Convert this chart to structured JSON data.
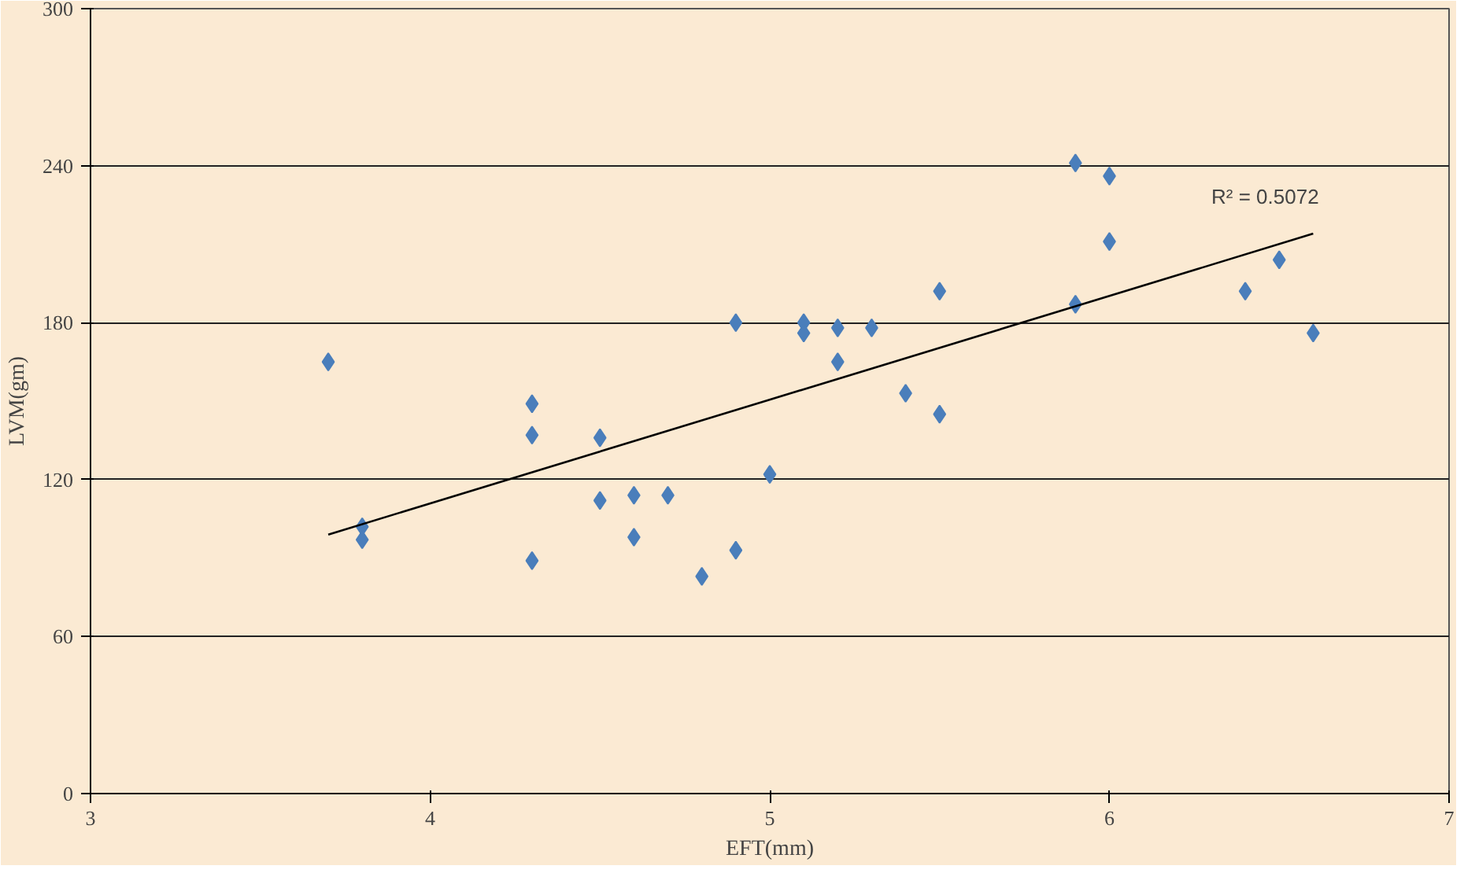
{
  "chart_data": {
    "type": "scatter",
    "xlabel": "EFT(mm)",
    "ylabel": "LVM(gm)",
    "xlim": [
      3,
      7
    ],
    "ylim": [
      0,
      300
    ],
    "xticks": [
      3,
      4,
      5,
      6,
      7
    ],
    "yticks": [
      0,
      60,
      120,
      180,
      240,
      300
    ],
    "grid": "y",
    "x": [
      3.7,
      3.8,
      3.8,
      4.3,
      4.3,
      4.3,
      4.5,
      4.5,
      4.6,
      4.6,
      4.7,
      4.8,
      4.9,
      4.9,
      5.0,
      5.1,
      5.1,
      5.2,
      5.2,
      5.3,
      5.4,
      5.5,
      5.5,
      5.9,
      5.9,
      6.0,
      6.0,
      6.4,
      6.5,
      6.6
    ],
    "series": [
      {
        "color": "#4a7ebb",
        "marker": "diamond",
        "values": [
          165,
          102,
          97,
          149,
          137,
          89,
          136,
          112,
          114,
          98,
          114,
          83,
          180,
          93,
          122,
          180,
          176,
          178,
          165,
          178,
          153,
          192,
          145,
          241,
          187,
          236,
          211,
          192,
          204,
          176
        ]
      },
      {
        "type": "line",
        "color": "#000000",
        "x": [
          3.7,
          6.6
        ],
        "values": [
          99,
          214
        ]
      }
    ],
    "annotations": [
      "R² = 0.5072"
    ]
  }
}
